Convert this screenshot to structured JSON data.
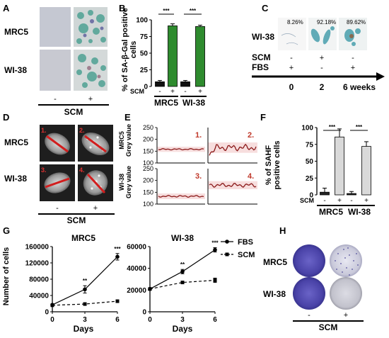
{
  "panels": {
    "A": {
      "letter": "A",
      "rows": [
        "MRC5",
        "WI-38"
      ],
      "minus": "-",
      "plus": "+",
      "treatment": "SCM"
    },
    "B": {
      "letter": "B",
      "sig": [
        "***",
        "***"
      ],
      "scm_label": "SCM",
      "minus": "-",
      "plus": "+",
      "groups": [
        "MRC5",
        "WI-38"
      ]
    },
    "C": {
      "letter": "C",
      "row_label": "WI-38",
      "percents": [
        "8.26%",
        "92.18%",
        "89.62%"
      ],
      "scm_label": "SCM",
      "fbs_label": "FBS",
      "scm_signs": [
        "-",
        "+",
        "-"
      ],
      "fbs_signs": [
        "+",
        "-",
        "+"
      ],
      "timepoints": [
        "0",
        "2",
        "6 weeks"
      ]
    },
    "D": {
      "letter": "D",
      "rows": [
        "MRC5",
        "WI-38"
      ],
      "numbers": [
        "1.",
        "2.",
        "3.",
        "4."
      ],
      "minus": "-",
      "plus": "+",
      "treatment": "SCM"
    },
    "E": {
      "letter": "E",
      "ylabels": [
        "MRC5\nGrey value",
        "WI-38\nGrey value"
      ],
      "ticks": [
        "100",
        "150",
        "200",
        "250"
      ],
      "numbers": [
        "1.",
        "2.",
        "3.",
        "4."
      ]
    },
    "F": {
      "letter": "F",
      "sig": [
        "***",
        "***"
      ],
      "scm_label": "SCM",
      "minus": "-",
      "plus": "+",
      "groups": [
        "MRC5",
        "WI-38"
      ]
    },
    "G": {
      "letter": "G",
      "legend_fbs": "FBS",
      "legend_scm": "SCM",
      "sig_left": [
        "**",
        "***"
      ],
      "sig_right": [
        "**",
        "***"
      ]
    },
    "H": {
      "letter": "H",
      "rows": [
        "MRC5",
        "WI-38"
      ],
      "minus": "-",
      "plus": "+",
      "treatment": "SCM"
    }
  },
  "chart_data": [
    {
      "type": "bar",
      "panel": "B",
      "ylabel": "% of SA-β-Gal positive cells",
      "ylim": [
        0,
        100
      ],
      "yticks": [
        0,
        25,
        50,
        75,
        100
      ],
      "categories": [
        "MRC5 -",
        "MRC5 +",
        "WI-38 -",
        "WI-38 +"
      ],
      "values": [
        7,
        91,
        7,
        90
      ],
      "errors": [
        2,
        3,
        2,
        2
      ],
      "colors": [
        "#111111",
        "#2e8b2e",
        "#111111",
        "#2e8b2e"
      ]
    },
    {
      "type": "bar",
      "panel": "F",
      "ylabel": "% of SAHF positive cells",
      "ylim": [
        0,
        100
      ],
      "yticks": [
        0,
        25,
        50,
        75,
        100
      ],
      "categories": [
        "MRC5 -",
        "MRC5 +",
        "WI-38 -",
        "WI-38 +"
      ],
      "values": [
        4,
        86,
        2,
        72
      ],
      "errors": [
        6,
        12,
        3,
        7
      ],
      "colors": [
        "#222222",
        "#d9d9d9",
        "#222222",
        "#d9d9d9"
      ]
    },
    {
      "type": "line",
      "panel": "G-left",
      "title": "MRC5",
      "xlabel": "Days",
      "ylabel": "Number of cells",
      "x": [
        0,
        3,
        6
      ],
      "xticks": [
        0,
        3,
        6
      ],
      "ylim": [
        0,
        160000
      ],
      "yticks": [
        0,
        40000,
        80000,
        120000,
        160000
      ],
      "series": [
        {
          "name": "FBS",
          "values": [
            17000,
            55000,
            135000
          ],
          "errors": [
            2000,
            9000,
            8000
          ],
          "dash": false
        },
        {
          "name": "SCM",
          "values": [
            16000,
            19000,
            26000
          ],
          "errors": [
            1000,
            2000,
            2000
          ],
          "dash": true
        }
      ]
    },
    {
      "type": "line",
      "panel": "G-right",
      "title": "WI-38",
      "xlabel": "Days",
      "ylabel": "",
      "x": [
        0,
        3,
        6
      ],
      "xticks": [
        0,
        3,
        6
      ],
      "ylim": [
        0,
        60000
      ],
      "yticks": [
        0,
        20000,
        40000,
        60000
      ],
      "series": [
        {
          "name": "FBS",
          "values": [
            21000,
            37000,
            57000
          ],
          "errors": [
            1000,
            2000,
            2000
          ],
          "dash": false
        },
        {
          "name": "SCM",
          "values": [
            21000,
            27000,
            29000
          ],
          "errors": [
            1000,
            1000,
            2000
          ],
          "dash": true
        }
      ]
    }
  ]
}
